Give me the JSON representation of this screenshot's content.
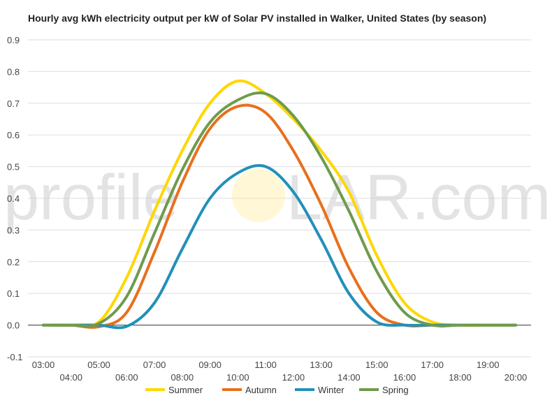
{
  "chart_data": {
    "type": "line",
    "title": "Hourly avg kWh electricity output per kW of Solar PV installed in Walker, United States (by season)",
    "xlabel": "",
    "ylabel": "",
    "x": [
      "03:00",
      "04:00",
      "05:00",
      "06:00",
      "07:00",
      "08:00",
      "09:00",
      "10:00",
      "11:00",
      "12:00",
      "13:00",
      "14:00",
      "15:00",
      "16:00",
      "17:00",
      "18:00",
      "19:00",
      "20:00"
    ],
    "ylim": [
      -0.1,
      0.9
    ],
    "yticks": [
      -0.1,
      0.0,
      0.1,
      0.2,
      0.3,
      0.4,
      0.5,
      0.6,
      0.7,
      0.8,
      0.9
    ],
    "ytick_labels": [
      "-0.1",
      "0.0",
      "0.1",
      "0.2",
      "0.3",
      "0.4",
      "0.5",
      "0.6",
      "0.7",
      "0.8",
      "0.9"
    ],
    "grid": true,
    "legend_position": "bottom",
    "series": [
      {
        "name": "Summer",
        "color": "#FFD700",
        "values": [
          0.0,
          0.0,
          0.01,
          0.15,
          0.36,
          0.55,
          0.7,
          0.77,
          0.73,
          0.65,
          0.55,
          0.42,
          0.22,
          0.07,
          0.01,
          0.0,
          0.0,
          0.0
        ]
      },
      {
        "name": "Autumn",
        "color": "#E8701E",
        "values": [
          0.0,
          0.0,
          -0.005,
          0.04,
          0.23,
          0.45,
          0.62,
          0.69,
          0.67,
          0.55,
          0.38,
          0.18,
          0.04,
          0.0,
          0.0,
          0.0,
          0.0,
          0.0
        ]
      },
      {
        "name": "Winter",
        "color": "#2290B8",
        "values": [
          0.0,
          0.0,
          0.0,
          -0.004,
          0.07,
          0.24,
          0.4,
          0.48,
          0.5,
          0.42,
          0.27,
          0.1,
          0.01,
          0.0,
          0.0,
          0.0,
          0.0,
          0.0
        ]
      },
      {
        "name": "Spring",
        "color": "#6E9B4C",
        "values": [
          0.0,
          0.0,
          0.005,
          0.09,
          0.29,
          0.49,
          0.64,
          0.71,
          0.73,
          0.66,
          0.53,
          0.36,
          0.17,
          0.04,
          0.0,
          0.0,
          0.0,
          0.0
        ]
      }
    ]
  },
  "watermark": {
    "left": "profile",
    "right": "LAR.com"
  }
}
